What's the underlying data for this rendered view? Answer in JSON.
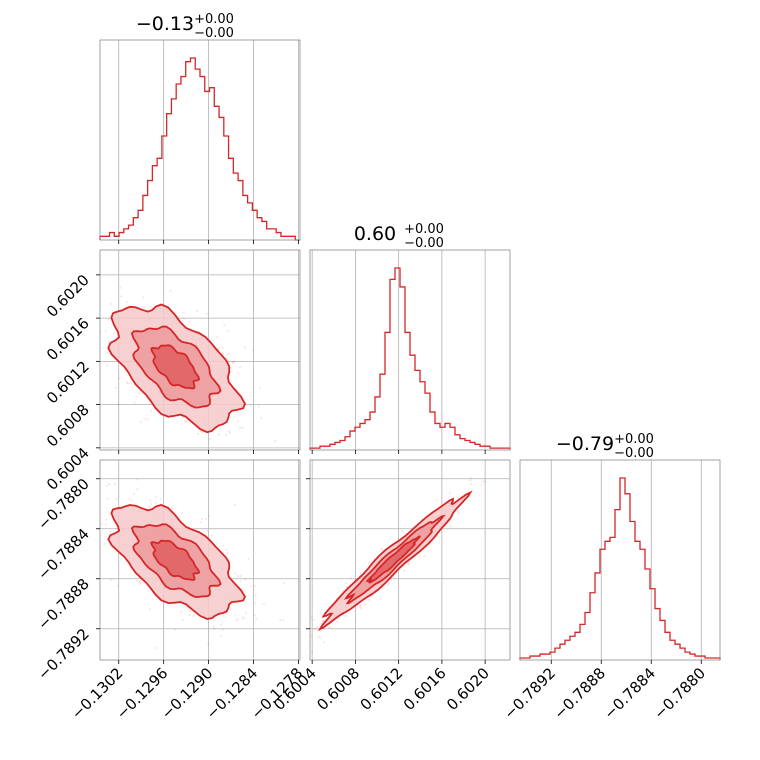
{
  "chart_data": {
    "type": "corner",
    "color": "#d62728",
    "grid": true,
    "parameters": [
      {
        "title_main": "−0.13",
        "title_plus": "+0.00",
        "title_minus": "−0.00"
      },
      {
        "title_main": "0.60",
        "title_plus": "+0.00",
        "title_minus": "−0.00"
      },
      {
        "title_main": "−0.79",
        "title_plus": "+0.00",
        "title_minus": "−0.00"
      }
    ],
    "axes": [
      {
        "range": [
          -0.13045,
          -0.12778
        ],
        "ticks": [
          -0.1302,
          -0.1296,
          -0.129,
          -0.1284,
          -0.1278
        ],
        "tick_labels": [
          "−0.1302",
          "−0.1296",
          "−0.1290",
          "−0.1284",
          "−0.1278"
        ]
      },
      {
        "range": [
          0.60038,
          0.60223
        ],
        "ticks": [
          0.6004,
          0.6008,
          0.6012,
          0.6016,
          0.602
        ],
        "tick_labels": [
          "0.6004",
          "0.6008",
          "0.6012",
          "0.6016",
          "0.6020"
        ]
      },
      {
        "range": [
          -0.78945,
          -0.78785
        ],
        "ticks": [
          -0.7892,
          -0.7888,
          -0.7884,
          -0.788
        ],
        "tick_labels": [
          "−0.7892",
          "−0.7888",
          "−0.7884",
          "−0.7880"
        ]
      }
    ],
    "histograms": [
      {
        "counts": [
          1,
          1,
          2,
          1,
          2,
          3,
          4,
          6,
          8,
          12,
          16,
          20,
          22,
          28,
          34,
          38,
          42,
          44,
          48,
          49,
          46,
          44,
          40,
          41,
          36,
          33,
          28,
          22,
          18,
          16,
          12,
          10,
          8,
          6,
          5,
          3,
          3,
          2,
          1,
          1,
          1,
          0
        ]
      },
      {
        "counts": [
          1,
          1,
          2,
          2,
          3,
          4,
          5,
          7,
          10,
          12,
          14,
          16,
          20,
          28,
          40,
          62,
          90,
          96,
          86,
          62,
          50,
          42,
          36,
          30,
          20,
          14,
          12,
          14,
          12,
          8,
          6,
          5,
          4,
          3,
          2,
          2,
          1,
          1,
          1,
          1
        ]
      },
      {
        "counts": [
          1,
          1,
          2,
          2,
          3,
          3,
          4,
          6,
          8,
          10,
          12,
          14,
          18,
          24,
          34,
          44,
          56,
          60,
          62,
          76,
          92,
          84,
          70,
          60,
          56,
          46,
          36,
          26,
          20,
          14,
          10,
          8,
          6,
          4,
          3,
          2,
          2,
          1,
          1,
          1
        ]
      }
    ],
    "pairs": [
      {
        "row": 1,
        "col": 0,
        "mean": [
          -0.12945,
          0.60115
        ],
        "sd": [
          0.00042,
          0.00028
        ],
        "rho": -0.55
      },
      {
        "row": 2,
        "col": 0,
        "mean": [
          -0.12945,
          -0.78865
        ],
        "sd": [
          0.00042,
          0.00022
        ],
        "rho": -0.6
      },
      {
        "row": 2,
        "col": 1,
        "mean": [
          0.60115,
          -0.78865
        ],
        "sd": [
          0.00032,
          0.00025
        ],
        "rho": 0.97
      }
    ]
  }
}
